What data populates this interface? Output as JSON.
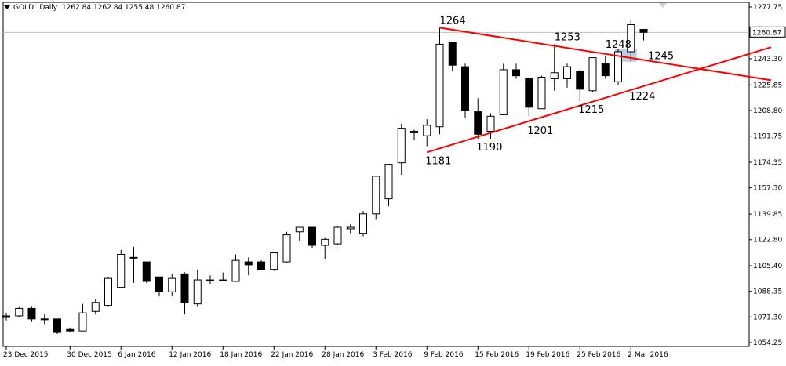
{
  "header": {
    "symbol": "GOLD`,Daily",
    "ohlc": "1262.84 1262.84 1255.48 1260.87"
  },
  "chart_data": {
    "type": "candlestick",
    "title": "",
    "xlabel": "",
    "ylabel": "",
    "ylim": [
      1054.25,
      1277.75
    ],
    "yticks": [
      1054.25,
      1071.3,
      1088.35,
      1105.4,
      1122.8,
      1139.85,
      1157.3,
      1174.35,
      1191.75,
      1208.8,
      1225.85,
      1243.3,
      1260.35,
      1277.75
    ],
    "ytick_labels": [
      "1054.25",
      "1071.30",
      "1088.35",
      "1105.40",
      "1122.80",
      "1139.85",
      "1157.30",
      "1174.35",
      "1191.75",
      "1208.80",
      "1225.85",
      "1243.30",
      "1260.35",
      "1277.75"
    ],
    "last_price_label": "1260.87",
    "last_price": 1260.87,
    "xtick_labels": [
      "23 Dec 2015",
      "30 Dec 2015",
      "6 Jan 2016",
      "12 Jan 2016",
      "18 Jan 2016",
      "22 Jan 2016",
      "28 Jan 2016",
      "3 Feb 2016",
      "9 Feb 2016",
      "15 Feb 2016",
      "19 Feb 2016",
      "25 Feb 2016",
      "2 Mar 2016"
    ],
    "xtick_bar_index": [
      0,
      5,
      9,
      13,
      17,
      21,
      25,
      29,
      33,
      37,
      41,
      45,
      49
    ],
    "candles": [
      [
        1072,
        1074,
        1069,
        1071
      ],
      [
        1072,
        1078,
        1071,
        1077
      ],
      [
        1077,
        1078,
        1068,
        1070
      ],
      [
        1070,
        1073,
        1066,
        1070
      ],
      [
        1070,
        1070,
        1060,
        1061
      ],
      [
        1063,
        1064,
        1061,
        1062
      ],
      [
        1062,
        1080,
        1063,
        1074
      ],
      [
        1075,
        1083,
        1073,
        1081
      ],
      [
        1079,
        1098,
        1078,
        1097
      ],
      [
        1091,
        1116,
        1091,
        1113
      ],
      [
        1111,
        1118,
        1094,
        1111
      ],
      [
        1108,
        1108,
        1094,
        1095
      ],
      [
        1098,
        1098,
        1085,
        1088
      ],
      [
        1088,
        1100,
        1085,
        1097
      ],
      [
        1100,
        1101,
        1073,
        1081
      ],
      [
        1080,
        1103,
        1078,
        1096
      ],
      [
        1096,
        1099,
        1093,
        1096
      ],
      [
        1096,
        1101,
        1095,
        1096
      ],
      [
        1095,
        1113,
        1095,
        1109
      ],
      [
        1108,
        1111,
        1099,
        1106
      ],
      [
        1108,
        1109,
        1103,
        1103
      ],
      [
        1103,
        1113,
        1102,
        1114
      ],
      [
        1108,
        1128,
        1107,
        1126
      ],
      [
        1128,
        1131,
        1122,
        1131
      ],
      [
        1131,
        1131,
        1117,
        1119
      ],
      [
        1119,
        1124,
        1110,
        1123
      ],
      [
        1120,
        1132,
        1119,
        1131
      ],
      [
        1130,
        1133,
        1127,
        1131
      ],
      [
        1127,
        1142,
        1125,
        1140
      ],
      [
        1140,
        1165,
        1136,
        1165
      ],
      [
        1150,
        1172,
        1145,
        1173
      ],
      [
        1174,
        1200,
        1166,
        1197
      ],
      [
        1194,
        1196,
        1189,
        1195
      ],
      [
        1192,
        1203,
        1185,
        1199
      ],
      [
        1198,
        1264,
        1193,
        1253
      ],
      [
        1254,
        1254,
        1235,
        1239
      ],
      [
        1238,
        1240,
        1204,
        1209
      ],
      [
        1208,
        1217,
        1190,
        1193
      ],
      [
        1195,
        1207,
        1190,
        1205
      ],
      [
        1206,
        1240,
        1206,
        1236
      ],
      [
        1236,
        1240,
        1230,
        1232
      ],
      [
        1230,
        1231,
        1205,
        1211
      ],
      [
        1210,
        1232,
        1210,
        1231
      ],
      [
        1230,
        1253,
        1222,
        1234
      ],
      [
        1230,
        1240,
        1224,
        1238
      ],
      [
        1235,
        1236,
        1215,
        1223
      ],
      [
        1222,
        1242,
        1221,
        1244
      ],
      [
        1240,
        1245,
        1230,
        1232
      ],
      [
        1228,
        1250,
        1226,
        1248
      ],
      [
        1248,
        1269,
        1241,
        1266
      ],
      [
        1262.84,
        1262.84,
        1255.48,
        1260.87
      ]
    ],
    "trendlines": [
      {
        "from_bar": 34,
        "from_price": 1264,
        "to_bar": 60,
        "to_price": 1229,
        "color": "#ff0000"
      },
      {
        "from_bar": 33,
        "from_price": 1181,
        "to_bar": 60,
        "to_price": 1251,
        "color": "#ff0000"
      }
    ],
    "annotations": [
      {
        "text": "1264",
        "bar": 34,
        "price": 1264,
        "pos": "above"
      },
      {
        "text": "1253",
        "bar": 43,
        "price": 1253,
        "pos": "above"
      },
      {
        "text": "1248",
        "bar": 47,
        "price": 1248,
        "pos": "above"
      },
      {
        "text": "1245",
        "bar": 49.6,
        "price": 1245,
        "pos": "right"
      },
      {
        "text": "1181",
        "bar": 33,
        "price": 1181,
        "pos": "below"
      },
      {
        "text": "1190",
        "bar": 37,
        "price": 1190,
        "pos": "below"
      },
      {
        "text": "1201",
        "bar": 41,
        "price": 1201,
        "pos": "below"
      },
      {
        "text": "1215",
        "bar": 45,
        "price": 1215,
        "pos": "below"
      },
      {
        "text": "1224",
        "bar": 49,
        "price": 1224,
        "pos": "below"
      }
    ],
    "highlight": {
      "bar": 48.6,
      "price": 1245
    },
    "colors": {
      "background": "#ffffff",
      "bull_body": "#ffffff",
      "bear_body": "#000000",
      "wick": "#000000",
      "trendline": "#ff0000",
      "highlight": "#b0c4de",
      "price_line": "#c0c0c0"
    },
    "grid": false
  }
}
